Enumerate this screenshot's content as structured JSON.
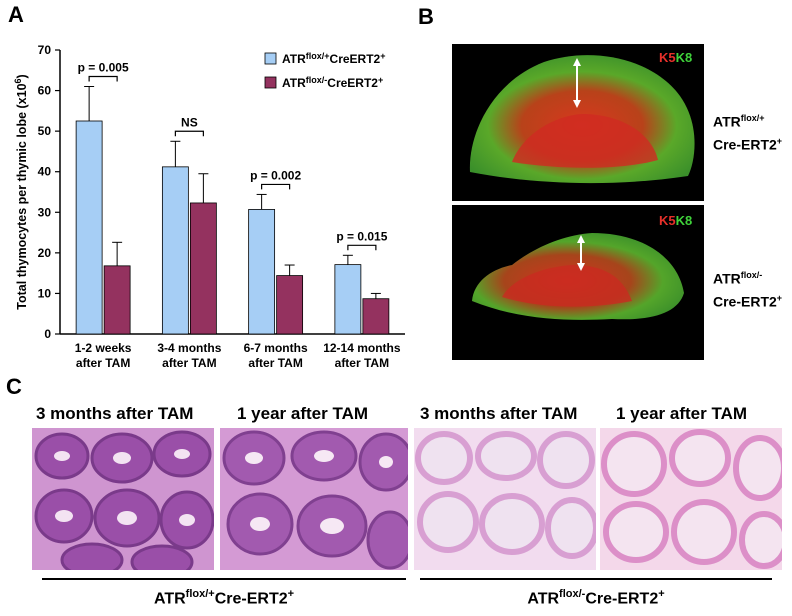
{
  "panel_labels": {
    "a": "A",
    "b": "B",
    "c": "C"
  },
  "chart_data": {
    "type": "bar",
    "ylabel": "Total thymocytes per thymic lobe (x10",
    "ylabel_sup": "6",
    "ylabel_end": ")",
    "ylim": [
      0,
      70
    ],
    "yticks": [
      "0",
      "10",
      "20",
      "30",
      "40",
      "50",
      "60",
      "70"
    ],
    "categories": [
      [
        "1-2 weeks",
        "after TAM"
      ],
      [
        "3-4 months",
        "after TAM"
      ],
      [
        "6-7 months",
        "after TAM"
      ],
      [
        "12-14 months",
        "after TAM"
      ]
    ],
    "series": [
      {
        "name": "ATRflox/+CreERT2+",
        "color": "#a6cef5",
        "values": [
          52.5,
          41.2,
          30.7,
          17.1
        ],
        "errors": [
          8.5,
          6.3,
          3.7,
          2.3
        ]
      },
      {
        "name": "ATRflox/-CreERT2+",
        "color": "#94325f",
        "values": [
          16.8,
          32.3,
          14.4,
          8.7
        ],
        "errors": [
          5.8,
          7.2,
          2.6,
          1.3
        ]
      }
    ],
    "legend": {
      "position": "top-right",
      "entries": [
        {
          "base": "ATR",
          "sup1": "flox/+",
          "mid": "CreERT2",
          "sup2": "+"
        },
        {
          "base": "ATR",
          "sup1": "flox/-",
          "mid": "CreERT2",
          "sup2": "+"
        }
      ]
    },
    "annotations": [
      {
        "group": 0,
        "text": "p = 0.005"
      },
      {
        "group": 1,
        "text": "NS"
      },
      {
        "group": 2,
        "text": "p = 0.002"
      },
      {
        "group": 3,
        "text": "p = 0.015"
      }
    ],
    "grid": false
  },
  "panel_b": {
    "stain_k5": "K5",
    "stain_k8": "K8",
    "top_label": {
      "line1_base": "ATR",
      "line1_sup": "flox/+",
      "line2_base": "Cre-ERT2",
      "line2_sup": "+"
    },
    "bottom_label": {
      "line1_base": "ATR",
      "line1_sup": "flox/-",
      "line2_base": "Cre-ERT2",
      "line2_sup": "+"
    },
    "colors": {
      "k5": "#e8302a",
      "k8": "#3fd23a"
    }
  },
  "panel_c": {
    "captions": [
      "3 months after TAM",
      "1 year after TAM",
      "3 months after TAM",
      "1 year after TAM"
    ],
    "genotypes": [
      {
        "base": "ATR",
        "sup": "flox/+",
        "rest": "Cre-ERT2",
        "sup2": "+"
      },
      {
        "base": "ATR",
        "sup": "flox/-",
        "rest": "Cre-ERT2",
        "sup2": "+"
      }
    ]
  }
}
